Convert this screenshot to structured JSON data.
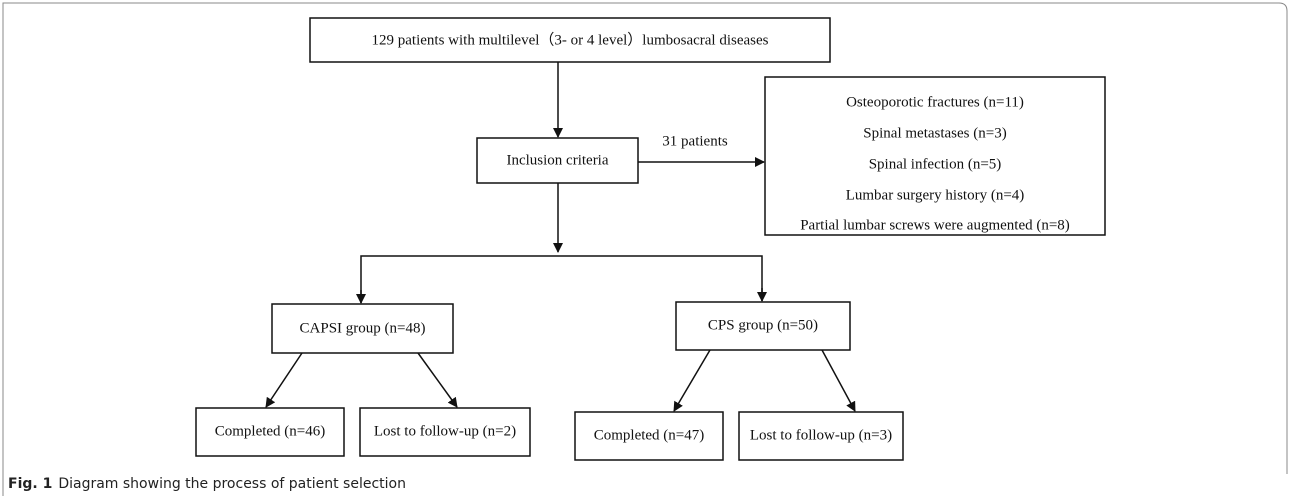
{
  "nodes": [
    {
      "label": "129 patients with multilevel（3- or 4 level）lumbosacral diseases"
    },
    {
      "label": "Inclusion criteria"
    },
    {
      "label": "CAPSI group (n=48)"
    },
    {
      "label": "CPS group (n=50)"
    },
    {
      "label": "Completed (n=46)"
    },
    {
      "label": "Lost to follow-up (n=2)"
    },
    {
      "label": "Completed (n=47)"
    },
    {
      "label": "Lost to follow-up (n=3)"
    }
  ],
  "exclusion": {
    "edge_label": "31 patients",
    "items": [
      "Osteoporotic fractures (n=11)",
      "Spinal metastases (n=3)",
      "Spinal infection (n=5)",
      "Lumbar surgery history (n=4)",
      "Partial lumbar screws were augmented (n=8)"
    ]
  },
  "caption": {
    "label": "Fig. 1",
    "text": "Diagram showing the process of patient selection"
  }
}
